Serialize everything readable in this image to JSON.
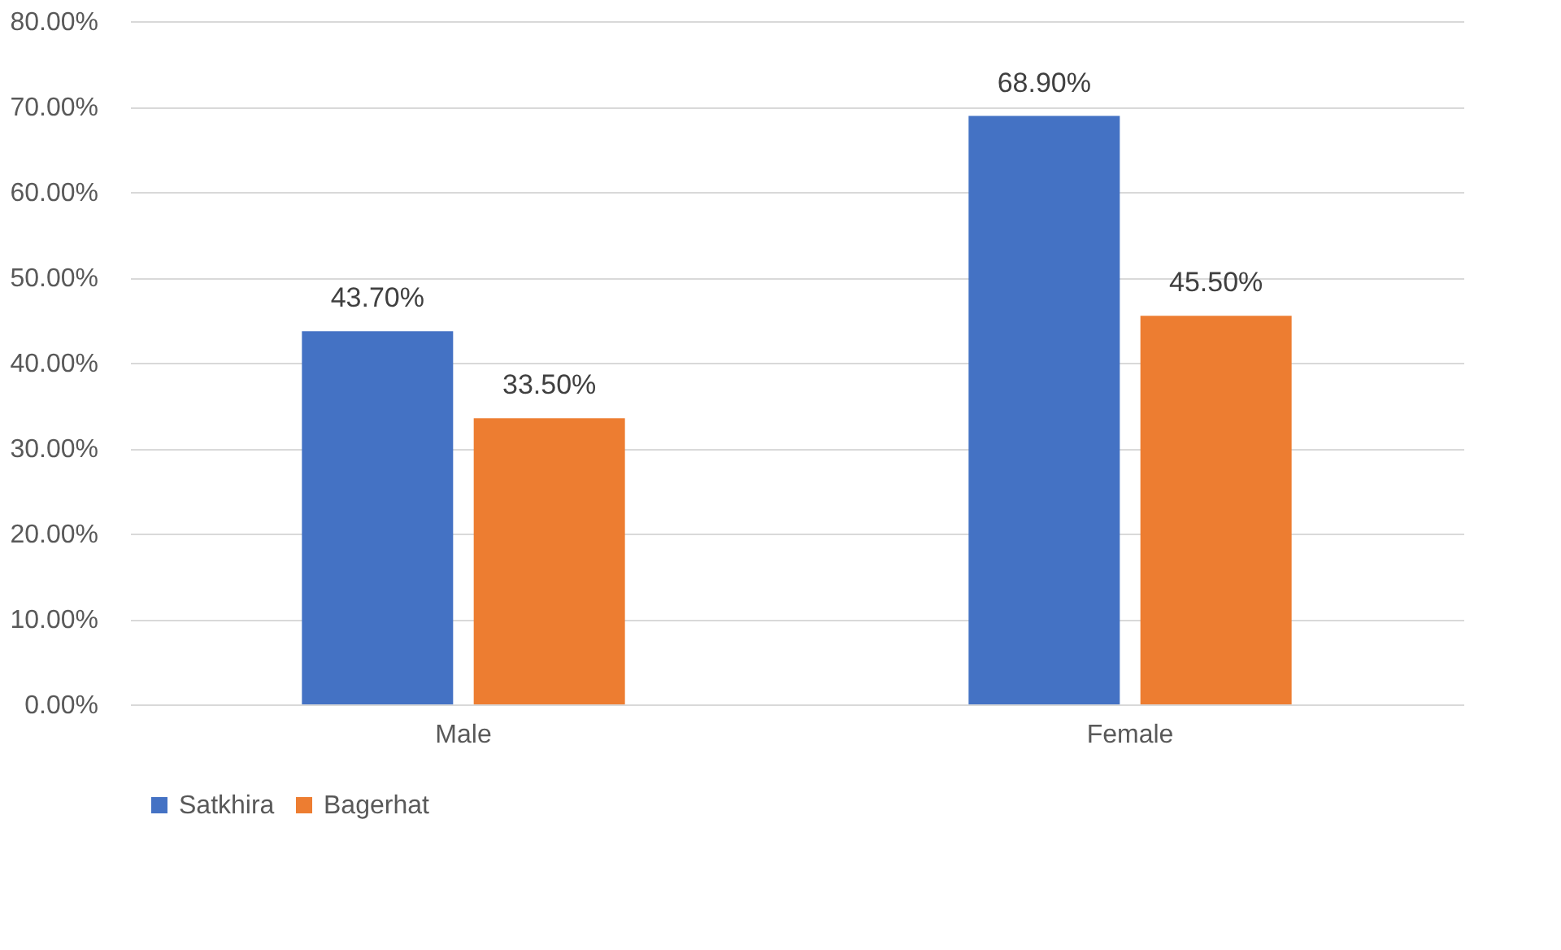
{
  "chart_data": {
    "type": "bar",
    "categories": [
      "Male",
      "Female"
    ],
    "series": [
      {
        "name": "Satkhira",
        "color": "#4472c4",
        "values": [
          43.7,
          68.9
        ],
        "value_labels": [
          "43.70%",
          "68.90%"
        ]
      },
      {
        "name": "Bagerhat",
        "color": "#ed7d31",
        "values": [
          33.5,
          45.5
        ],
        "value_labels": [
          "33.50%",
          "45.50%"
        ]
      }
    ],
    "ylim": [
      0,
      80
    ],
    "yticks": [
      {
        "value": 0,
        "label": "0.00%"
      },
      {
        "value": 10,
        "label": "10.00%"
      },
      {
        "value": 20,
        "label": "20.00%"
      },
      {
        "value": 30,
        "label": "30.00%"
      },
      {
        "value": 40,
        "label": "40.00%"
      },
      {
        "value": 50,
        "label": "50.00%"
      },
      {
        "value": 60,
        "label": "60.00%"
      },
      {
        "value": 70,
        "label": "70.00%"
      },
      {
        "value": 80,
        "label": "80.00%"
      }
    ],
    "grid": "y",
    "legend": "bottom"
  }
}
